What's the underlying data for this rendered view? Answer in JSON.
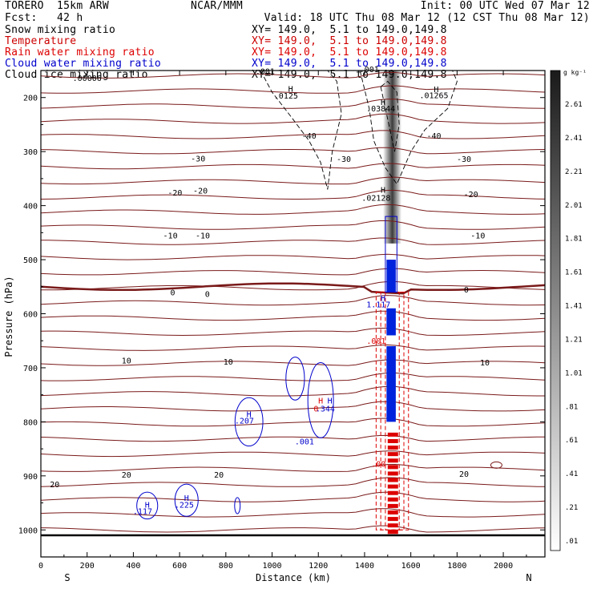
{
  "header": {
    "model": "TORERO  15km ARW",
    "org": "NCAR/MMM",
    "init": "Init: 00 UTC Wed 07 Mar 12",
    "fcst": "Fcst:   42 h",
    "valid": "Valid: 18 UTC Thu 08 Mar 12 (12 CST Thu 08 Mar 12)"
  },
  "fields": [
    {
      "name": "Snow mixing ratio",
      "xy": "XY= 149.0,  5.1 to 149.0,149.8",
      "color": "#000000"
    },
    {
      "name": "Temperature",
      "xy": "XY= 149.0,  5.1 to 149.0,149.8",
      "color": "#cc0000"
    },
    {
      "name": "Rain water mixing ratio",
      "xy": "XY= 149.0,  5.1 to 149.0,149.8",
      "color": "#dd0000"
    },
    {
      "name": "Cloud water mixing ratio",
      "xy": "XY= 149.0,  5.1 to 149.0,149.8",
      "color": "#0000cc"
    },
    {
      "name": "Cloud ice mixing ratio",
      "xy": "XY= 149.0,  5.1 to 149.0,149.8",
      "color": "#000000"
    }
  ],
  "chart_data": {
    "type": "contour",
    "xlabel": "Distance (km)",
    "ylabel": "Pressure (hPa)",
    "xlim": [
      0,
      2180
    ],
    "ylim": [
      1050,
      150
    ],
    "x_ticks": [
      0,
      200,
      400,
      600,
      800,
      1000,
      1200,
      1400,
      1600,
      1800,
      2000
    ],
    "y_ticks": [
      200,
      300,
      400,
      500,
      600,
      700,
      800,
      900,
      1000
    ],
    "x_end_labels": {
      "left": "S",
      "right": "N"
    },
    "colorbar": {
      "unit": "g kg⁻¹",
      "labels": [
        ".01",
        ".21",
        ".41",
        ".61",
        ".81",
        "1.01",
        "1.21",
        "1.41",
        "1.61",
        "1.81",
        "2.01",
        "2.21",
        "2.41",
        "2.61"
      ]
    },
    "temperature_labels": [
      {
        "label": "-40",
        "x": 1160,
        "p": 270
      },
      {
        "label": "-40",
        "x": 1700,
        "p": 270
      },
      {
        "label": "-30",
        "x": 680,
        "p": 312
      },
      {
        "label": "-30",
        "x": 1310,
        "p": 313
      },
      {
        "label": "-30",
        "x": 1830,
        "p": 313
      },
      {
        "label": "-20",
        "x": 580,
        "p": 375
      },
      {
        "label": "-20",
        "x": 690,
        "p": 372
      },
      {
        "label": "-20",
        "x": 1860,
        "p": 378
      },
      {
        "label": "-10",
        "x": 560,
        "p": 455
      },
      {
        "label": "-10",
        "x": 700,
        "p": 455
      },
      {
        "label": "-10",
        "x": 1890,
        "p": 455
      },
      {
        "label": "0",
        "x": 570,
        "p": 560
      },
      {
        "label": "0",
        "x": 720,
        "p": 563
      },
      {
        "label": "0",
        "x": 1840,
        "p": 555
      },
      {
        "label": "10",
        "x": 370,
        "p": 686
      },
      {
        "label": "10",
        "x": 810,
        "p": 688
      },
      {
        "label": "10",
        "x": 1920,
        "p": 690
      },
      {
        "label": "20",
        "x": 60,
        "p": 915
      },
      {
        "label": "20",
        "x": 370,
        "p": 897
      },
      {
        "label": "20",
        "x": 770,
        "p": 897
      },
      {
        "label": "20",
        "x": 1830,
        "p": 896
      }
    ],
    "maxima_labels": [
      {
        "label": "H",
        "x": 1080,
        "p": 183,
        "color": "#000000"
      },
      {
        "label": ".0125",
        "x": 1060,
        "p": 196,
        "color": "#000000"
      },
      {
        "label": "H",
        "x": 1710,
        "p": 184,
        "color": "#000000"
      },
      {
        "label": ".01265",
        "x": 1700,
        "p": 195,
        "color": "#000000"
      },
      {
        "label": "H",
        "x": 1480,
        "p": 208,
        "color": "#000000"
      },
      {
        "label": ".03844",
        "x": 1470,
        "p": 220,
        "color": "#000000"
      },
      {
        "label": "H",
        "x": 1480,
        "p": 370,
        "color": "#000000"
      },
      {
        "label": ".02128",
        "x": 1450,
        "p": 385,
        "color": "#000000"
      },
      {
        "label": ".00006",
        "x": 200,
        "p": 163,
        "color": "#000000"
      },
      {
        "label": ".001",
        "x": 970,
        "p": 151,
        "color": "#000000"
      },
      {
        "label": ".001",
        "x": 1420,
        "p": 147,
        "color": "#000000"
      },
      {
        "label": "H",
        "x": 1480,
        "p": 570,
        "color": "#0000cc"
      },
      {
        "label": "1.117",
        "x": 1460,
        "p": 582,
        "color": "#0000cc"
      },
      {
        "label": ".001",
        "x": 1450,
        "p": 650,
        "color": "#dd0000"
      },
      {
        "label": "H",
        "x": 1210,
        "p": 760,
        "color": "#dd0000"
      },
      {
        "label": "H",
        "x": 1250,
        "p": 760,
        "color": "#0000cc"
      },
      {
        "label": "0",
        "x": 1190,
        "p": 775,
        "color": "#dd0000"
      },
      {
        "label": ".344",
        "x": 1230,
        "p": 775,
        "color": "#0000cc"
      },
      {
        "label": "H",
        "x": 900,
        "p": 785,
        "color": "#0000cc"
      },
      {
        "label": ".207",
        "x": 880,
        "p": 797,
        "color": "#0000cc"
      },
      {
        "label": ".001",
        "x": 1140,
        "p": 836,
        "color": "#0000cc"
      },
      {
        "label": ".00",
        "x": 1460,
        "p": 877,
        "color": "#dd0000"
      },
      {
        "label": "H",
        "x": 460,
        "p": 953,
        "color": "#0000cc"
      },
      {
        "label": ".117",
        "x": 440,
        "p": 965,
        "color": "#0000cc"
      },
      {
        "label": "H",
        "x": 630,
        "p": 940,
        "color": "#0000cc"
      },
      {
        "label": ".225",
        "x": 620,
        "p": 953,
        "color": "#0000cc"
      }
    ]
  }
}
